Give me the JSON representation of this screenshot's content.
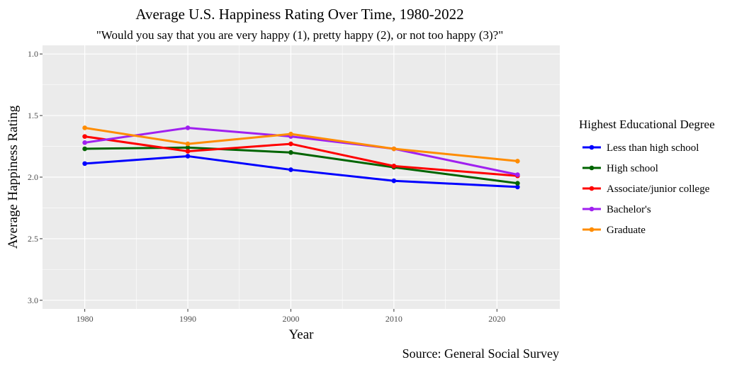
{
  "chart_data": {
    "type": "line",
    "title": "Average U.S. Happiness Rating Over Time, 1980-2022",
    "subtitle": "\"Would you say that you are very happy (1), pretty happy (2), or not too happy (3)?\"",
    "xlabel": "Year",
    "ylabel": "Average Happiness Rating",
    "caption": "Source: General Social Survey",
    "x": [
      1980,
      1990,
      2000,
      2010,
      2022
    ],
    "xlim": [
      1975.9,
      2026.1
    ],
    "ylim": [
      0.93,
      3.07
    ],
    "y_reversed": true,
    "x_ticks": [
      1980,
      1990,
      2000,
      2010,
      2020
    ],
    "y_ticks": [
      1.0,
      1.5,
      2.0,
      2.5,
      3.0
    ],
    "x_tick_labels": [
      "1980",
      "1990",
      "2000",
      "2010",
      "2020"
    ],
    "y_tick_labels": [
      "1.0",
      "1.5",
      "2.0",
      "2.5",
      "3.0"
    ],
    "grid": true,
    "legend": {
      "title": "Highest Educational Degree",
      "position": "right"
    },
    "series": [
      {
        "name": "Less than high school",
        "color": "#0000ff",
        "values": [
          1.89,
          1.83,
          1.94,
          2.03,
          2.08
        ]
      },
      {
        "name": "High school",
        "color": "#006400",
        "values": [
          1.77,
          1.76,
          1.8,
          1.92,
          2.05
        ]
      },
      {
        "name": "Associate/junior college",
        "color": "#ff0000",
        "values": [
          1.67,
          1.79,
          1.73,
          1.91,
          1.99
        ]
      },
      {
        "name": "Bachelor's",
        "color": "#a020f0",
        "values": [
          1.72,
          1.6,
          1.67,
          1.77,
          1.98
        ]
      },
      {
        "name": "Graduate",
        "color": "#ff8c00",
        "values": [
          1.6,
          1.73,
          1.65,
          1.77,
          1.87
        ]
      }
    ]
  }
}
